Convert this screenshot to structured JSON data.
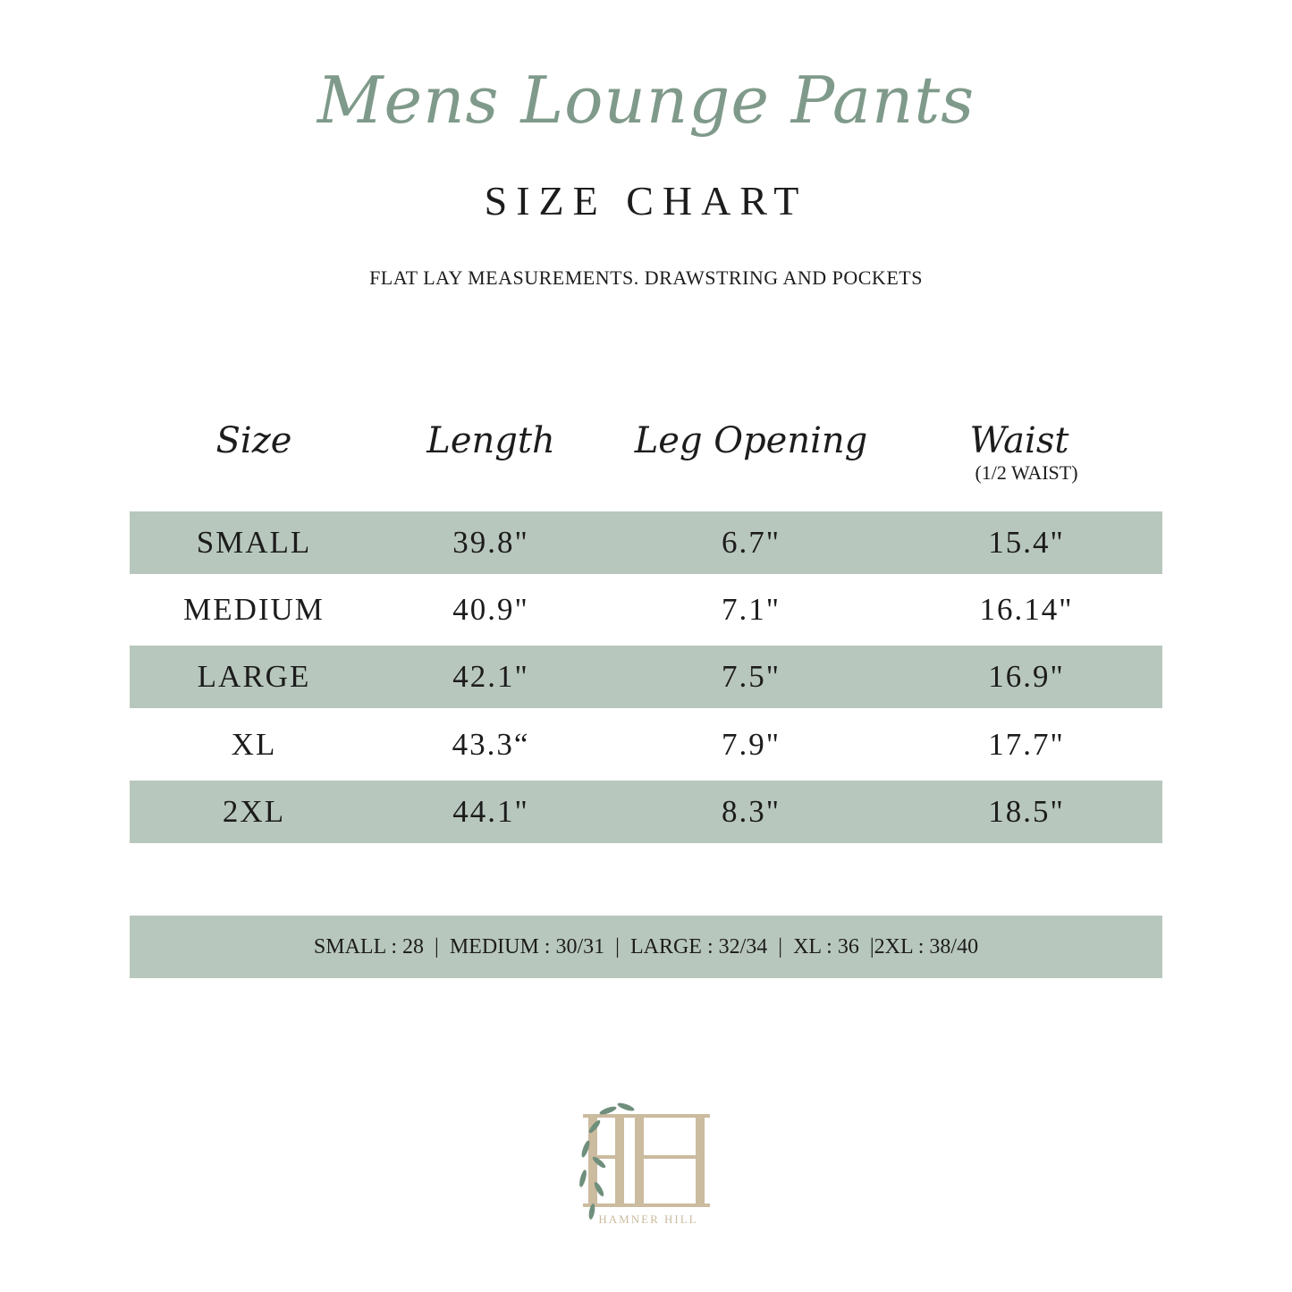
{
  "title": "Mens Lounge Pants",
  "subtitle": "SIZE CHART",
  "note": "FLAT LAY MEASUREMENTS. DRAWSTRING AND POCKETS",
  "columns": [
    {
      "label": "Size"
    },
    {
      "label": "Length"
    },
    {
      "label": "Leg Opening"
    },
    {
      "label": "Waist",
      "sublabel": "(1/2 WAIST)"
    }
  ],
  "rows": [
    [
      "SMALL",
      "39.8\"",
      "6.7\"",
      "15.4\""
    ],
    [
      "MEDIUM",
      "40.9\"",
      "7.1\"",
      "16.14\""
    ],
    [
      "LARGE",
      "42.1\"",
      "7.5\"",
      "16.9\""
    ],
    [
      "XL",
      "43.3“",
      "7.9\"",
      "17.7\""
    ],
    [
      "2XL",
      "44.1\"",
      "8.3\"",
      "18.5\""
    ]
  ],
  "waist_sizes": "SMALL : 28  |  MEDIUM : 30/31  |  LARGE : 32/34  |  XL : 36  |2XL : 38/40",
  "logo": {
    "monogram": "HH",
    "name": "HAMNER HILL"
  },
  "colors": {
    "band": "#b8c7bd",
    "title": "#7f9a8a",
    "logo": "#c9b89c",
    "leaf": "#6f8f7c"
  }
}
